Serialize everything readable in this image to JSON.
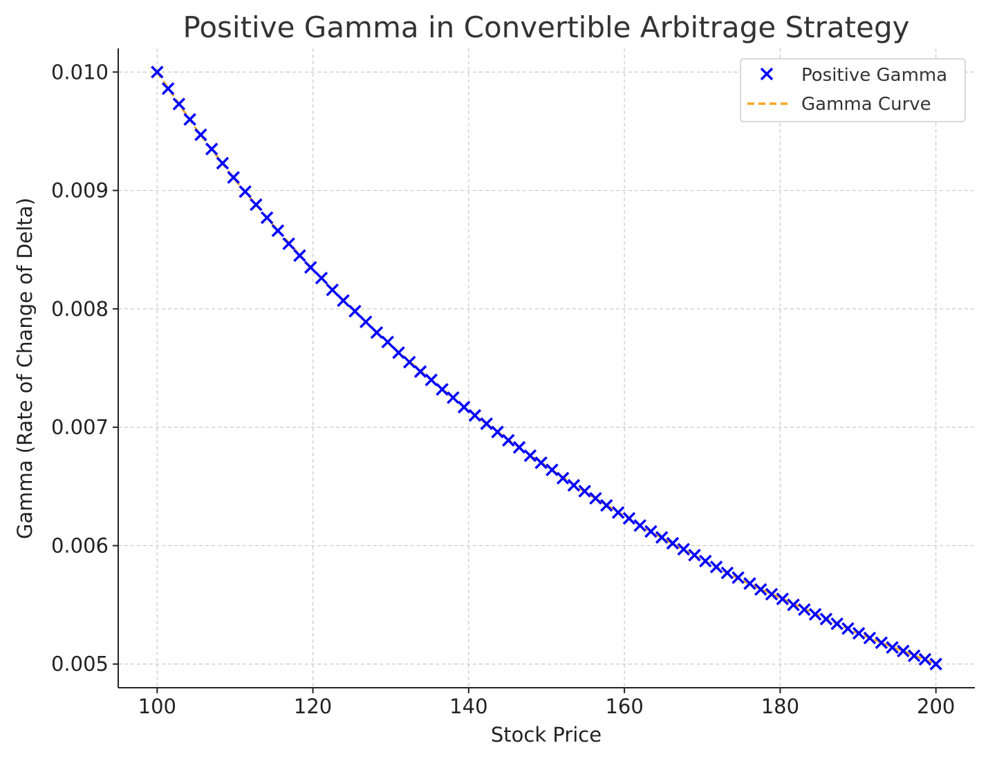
{
  "chart_data": {
    "type": "scatter",
    "title": "Positive Gamma in Convertible Arbitrage Strategy",
    "xlabel": "Stock Price",
    "ylabel": "Gamma (Rate of Change of Delta)",
    "xlim": [
      95,
      205
    ],
    "ylim": [
      0.0048,
      0.0102
    ],
    "xticks": [
      100,
      120,
      140,
      160,
      180,
      200
    ],
    "xtick_labels": [
      "100",
      "120",
      "140",
      "160",
      "180",
      "200"
    ],
    "yticks": [
      0.005,
      0.006,
      0.007,
      0.008,
      0.009,
      0.01
    ],
    "ytick_labels": [
      "0.005",
      "0.006",
      "0.007",
      "0.008",
      "0.009",
      "0.010"
    ],
    "grid": true,
    "legend_position": "top-right",
    "series": [
      {
        "name": "Positive Gamma",
        "kind": "scatter",
        "marker": "x",
        "color": "#0000ff",
        "x": [
          100,
          101.4,
          102.8,
          104.2,
          105.6,
          107,
          108.4,
          109.8,
          111.3,
          112.7,
          114.1,
          115.5,
          116.9,
          118.3,
          119.7,
          121.1,
          122.5,
          123.9,
          125.4,
          126.8,
          128.2,
          129.6,
          131,
          132.4,
          133.8,
          135.2,
          136.6,
          138,
          139.4,
          140.8,
          142.3,
          143.7,
          145.1,
          146.5,
          147.9,
          149.3,
          150.7,
          152.1,
          153.5,
          154.9,
          156.3,
          157.7,
          159.2,
          160.6,
          162,
          163.4,
          164.8,
          166.2,
          167.6,
          169,
          170.4,
          171.8,
          173.2,
          174.6,
          176.1,
          177.5,
          178.9,
          180.3,
          181.7,
          183.1,
          184.5,
          185.9,
          187.3,
          188.7,
          190.1,
          191.5,
          193,
          194.4,
          195.8,
          197.2,
          198.6,
          200
        ],
        "y": [
          0.01,
          0.00986,
          0.00973,
          0.0096,
          0.00947,
          0.00935,
          0.00923,
          0.00911,
          0.00899,
          0.00888,
          0.00877,
          0.00866,
          0.00855,
          0.00845,
          0.00835,
          0.00826,
          0.00816,
          0.00807,
          0.00798,
          0.00789,
          0.0078,
          0.00772,
          0.00763,
          0.00755,
          0.00747,
          0.0074,
          0.00732,
          0.00725,
          0.00717,
          0.0071,
          0.00703,
          0.00696,
          0.00689,
          0.00683,
          0.00676,
          0.0067,
          0.00664,
          0.00657,
          0.00651,
          0.00646,
          0.0064,
          0.00634,
          0.00628,
          0.00623,
          0.00617,
          0.00612,
          0.00607,
          0.00602,
          0.00597,
          0.00592,
          0.00587,
          0.00582,
          0.00577,
          0.00573,
          0.00568,
          0.00563,
          0.00559,
          0.00555,
          0.0055,
          0.00546,
          0.00542,
          0.00538,
          0.00534,
          0.0053,
          0.00526,
          0.00522,
          0.00518,
          0.00514,
          0.00511,
          0.00507,
          0.00504,
          0.005
        ]
      },
      {
        "name": "Gamma Curve",
        "kind": "line",
        "style": "dashed",
        "color": "#f5a623",
        "x": [
          100,
          105,
          110,
          115,
          120,
          125,
          130,
          135,
          140,
          145,
          150,
          155,
          160,
          165,
          170,
          175,
          180,
          185,
          190,
          195,
          200
        ],
        "y": [
          0.01,
          0.00952,
          0.00909,
          0.0087,
          0.00833,
          0.008,
          0.00769,
          0.00741,
          0.00714,
          0.0069,
          0.00667,
          0.00645,
          0.00625,
          0.00606,
          0.00588,
          0.00571,
          0.00556,
          0.00541,
          0.00526,
          0.00513,
          0.005
        ]
      }
    ]
  }
}
